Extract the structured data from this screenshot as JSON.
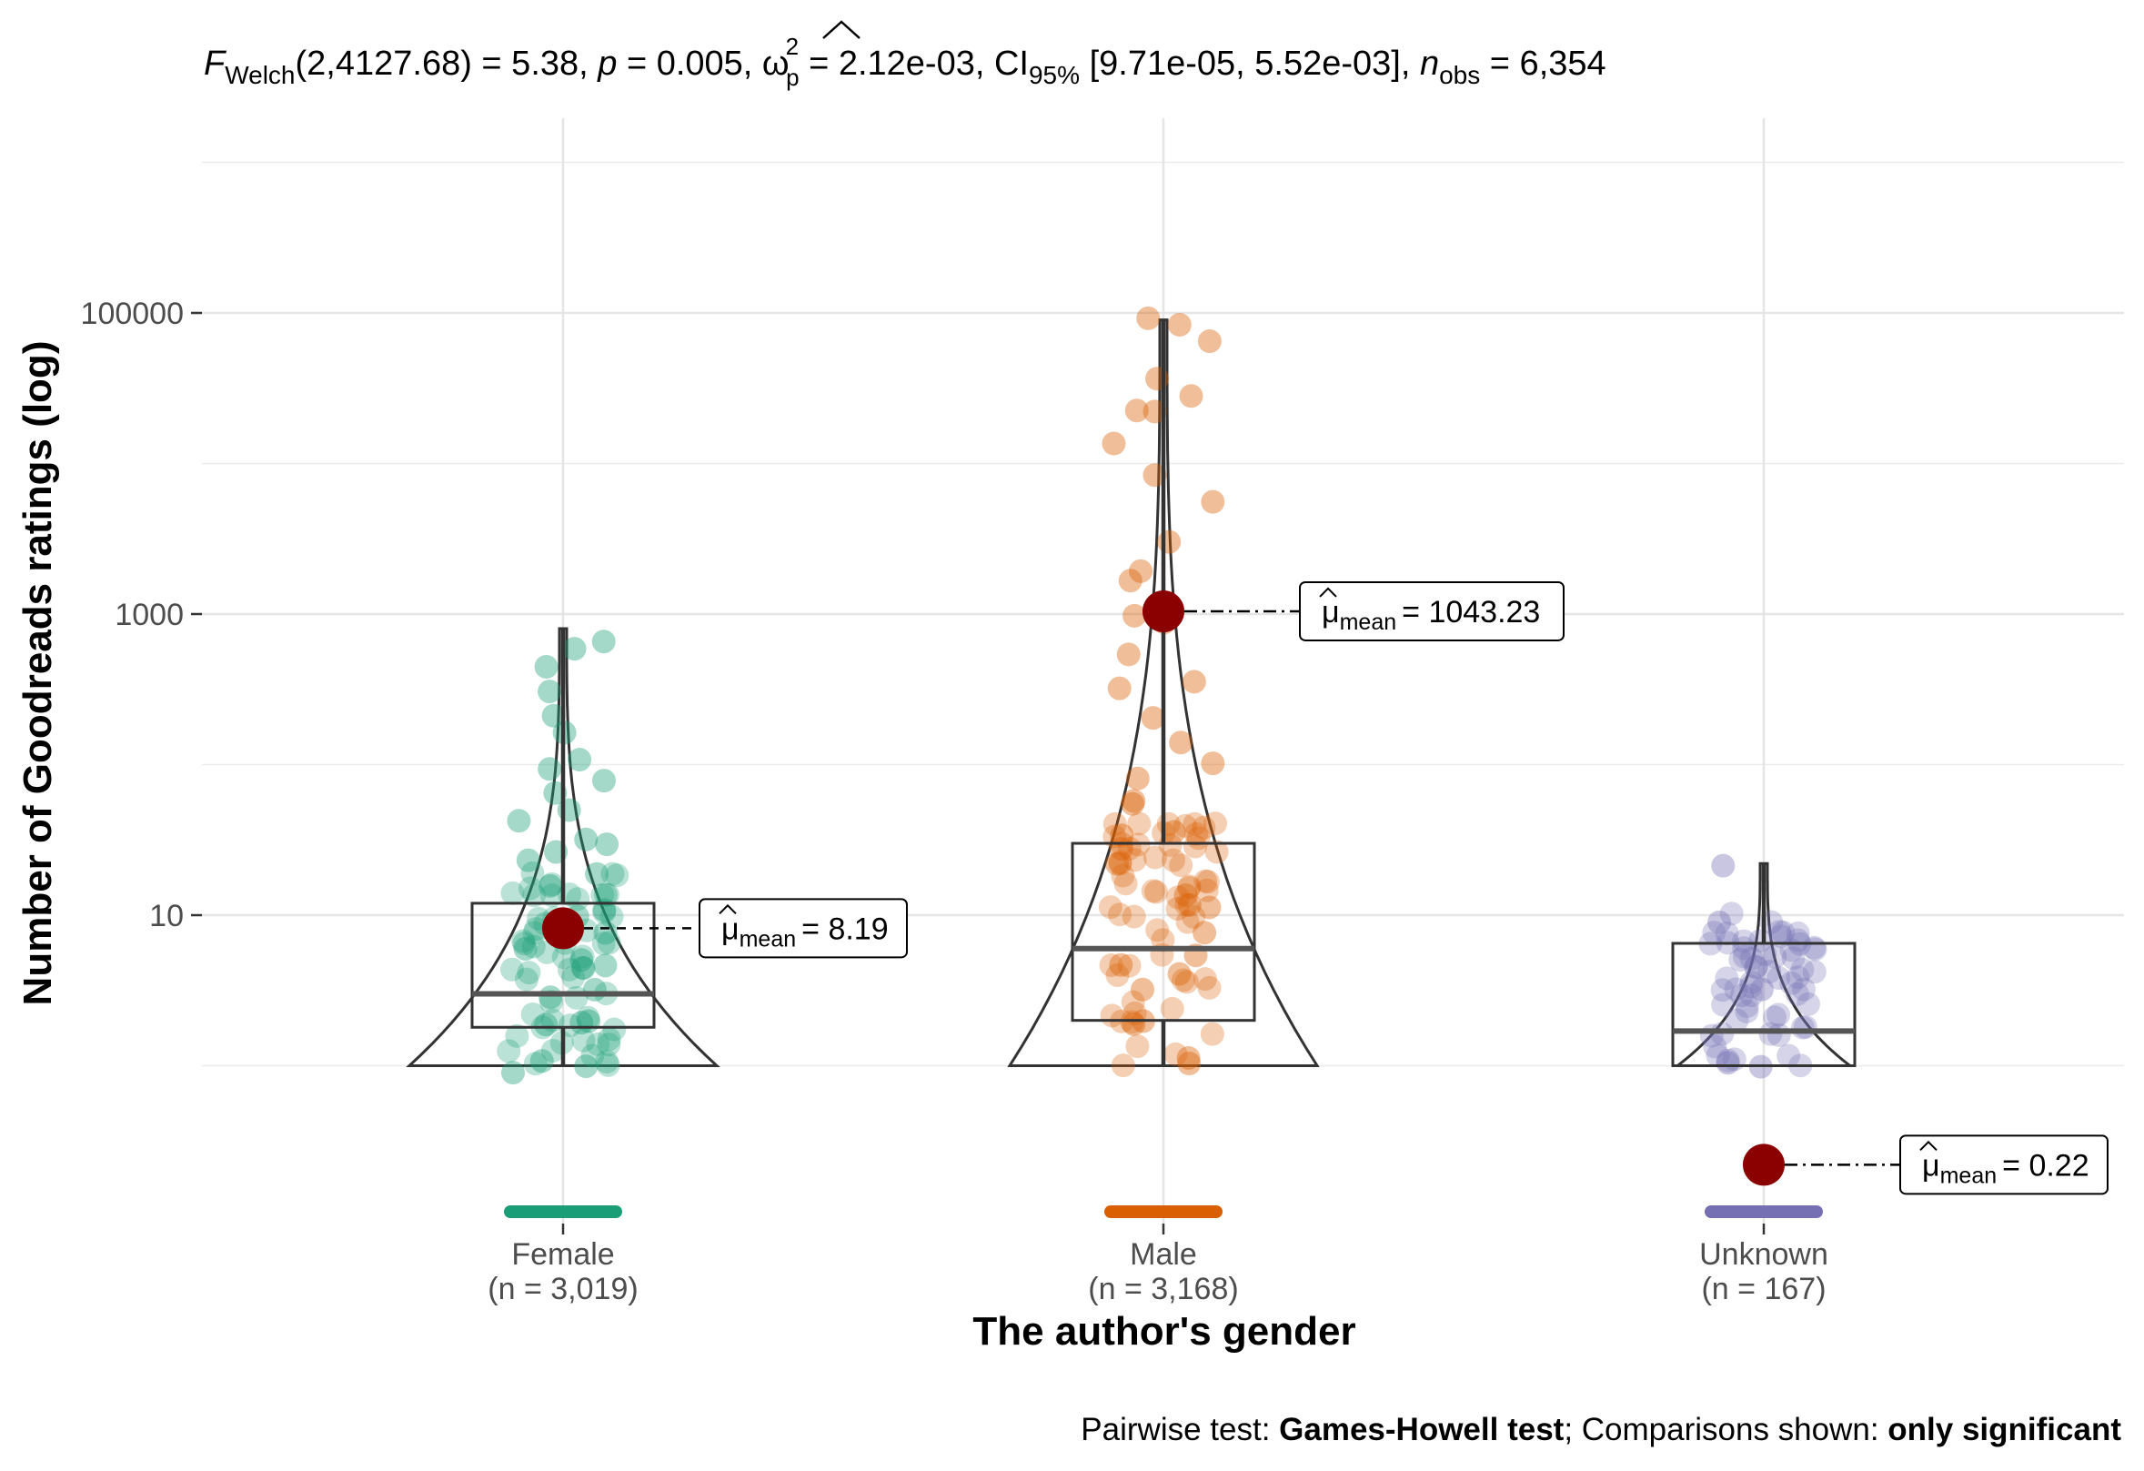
{
  "chart_data": {
    "type": "violin-box-scatter",
    "subtitle": {
      "stat_symbol": "F",
      "stat_sub": "Welch",
      "stat_args": "(2,4127.68) = 5.38, ",
      "p_symbol": "p",
      "p_value": " = 0.005, ",
      "effect_symbol": "ω",
      "effect_sup": "2",
      "effect_sub": "p",
      "effect_value": " = 2.12e-03, CI",
      "ci_sub": "95%",
      "ci_value": " [9.71e-05, 5.52e-03], ",
      "n_symbol": "n",
      "n_sub": "obs",
      "n_value": " = 6,354"
    },
    "xlabel": "The author's gender",
    "ylabel": "Number of Goodreads ratings (log)",
    "y_scale": "log10",
    "ylim": [
      0.02,
      1000000
    ],
    "y_ticks": [
      10,
      1000,
      100000
    ],
    "y_tick_labels": [
      "10",
      "1000",
      "100000"
    ],
    "grid": true,
    "caption": {
      "prefix": "Pairwise test: ",
      "test": "Games-Howell test",
      "middle": "; Comparisons shown: ",
      "shown": "only significant"
    },
    "mean_label_symbol": "μ",
    "mean_label_sub": "mean",
    "groups": [
      {
        "name": "Female",
        "n_label": "(n = 3,019)",
        "color": "#1B9E77",
        "mean": 8.19,
        "mean_label_value": "= 8.19",
        "box": {
          "q1": 1.8,
          "median": 3.0,
          "q3": 12
        },
        "whisker_top": 800,
        "whisker_bottom": 1,
        "violin_max": 800,
        "violin_min": 1,
        "zero_count": true,
        "sample_points": [
          1,
          1,
          1,
          2,
          2,
          2,
          3,
          3,
          4,
          5,
          5,
          6,
          8,
          10,
          12,
          15,
          18,
          22,
          25,
          30,
          35,
          40,
          50,
          60,
          70,
          90,
          120,
          150,
          200,
          300,
          450,
          550,
          650
        ]
      },
      {
        "name": "Male",
        "n_label": "(n = 3,168)",
        "color": "#D95F02",
        "mean": 1043.23,
        "mean_label_value": "= 1043.23",
        "box": {
          "q1": 2.0,
          "median": 6.0,
          "q3": 30
        },
        "whisker_top": 90000,
        "whisker_bottom": 1,
        "violin_max": 90000,
        "violin_min": 1,
        "zero_count": true,
        "sample_points": [
          1,
          1,
          2,
          2,
          3,
          4,
          5,
          6,
          8,
          10,
          12,
          15,
          20,
          25,
          30,
          40,
          50,
          60,
          80,
          100,
          150,
          200,
          300,
          400,
          600,
          800,
          1000,
          1500,
          2000,
          3000,
          5000,
          8000,
          12000,
          20000,
          25000,
          30000,
          40000,
          70000,
          85000,
          90000
        ]
      },
      {
        "name": "Unknown",
        "n_label": "(n = 167)",
        "color": "#7570B3",
        "mean": 0.22,
        "mean_label_value": "= 0.22",
        "box": {
          "q1": 1.0,
          "median": 1.7,
          "q3": 6.5
        },
        "whisker_top": 22,
        "whisker_bottom": 1,
        "violin_max": 22,
        "violin_min": 1,
        "zero_count": true,
        "sample_points": [
          1,
          1,
          3,
          8,
          22
        ]
      }
    ]
  }
}
